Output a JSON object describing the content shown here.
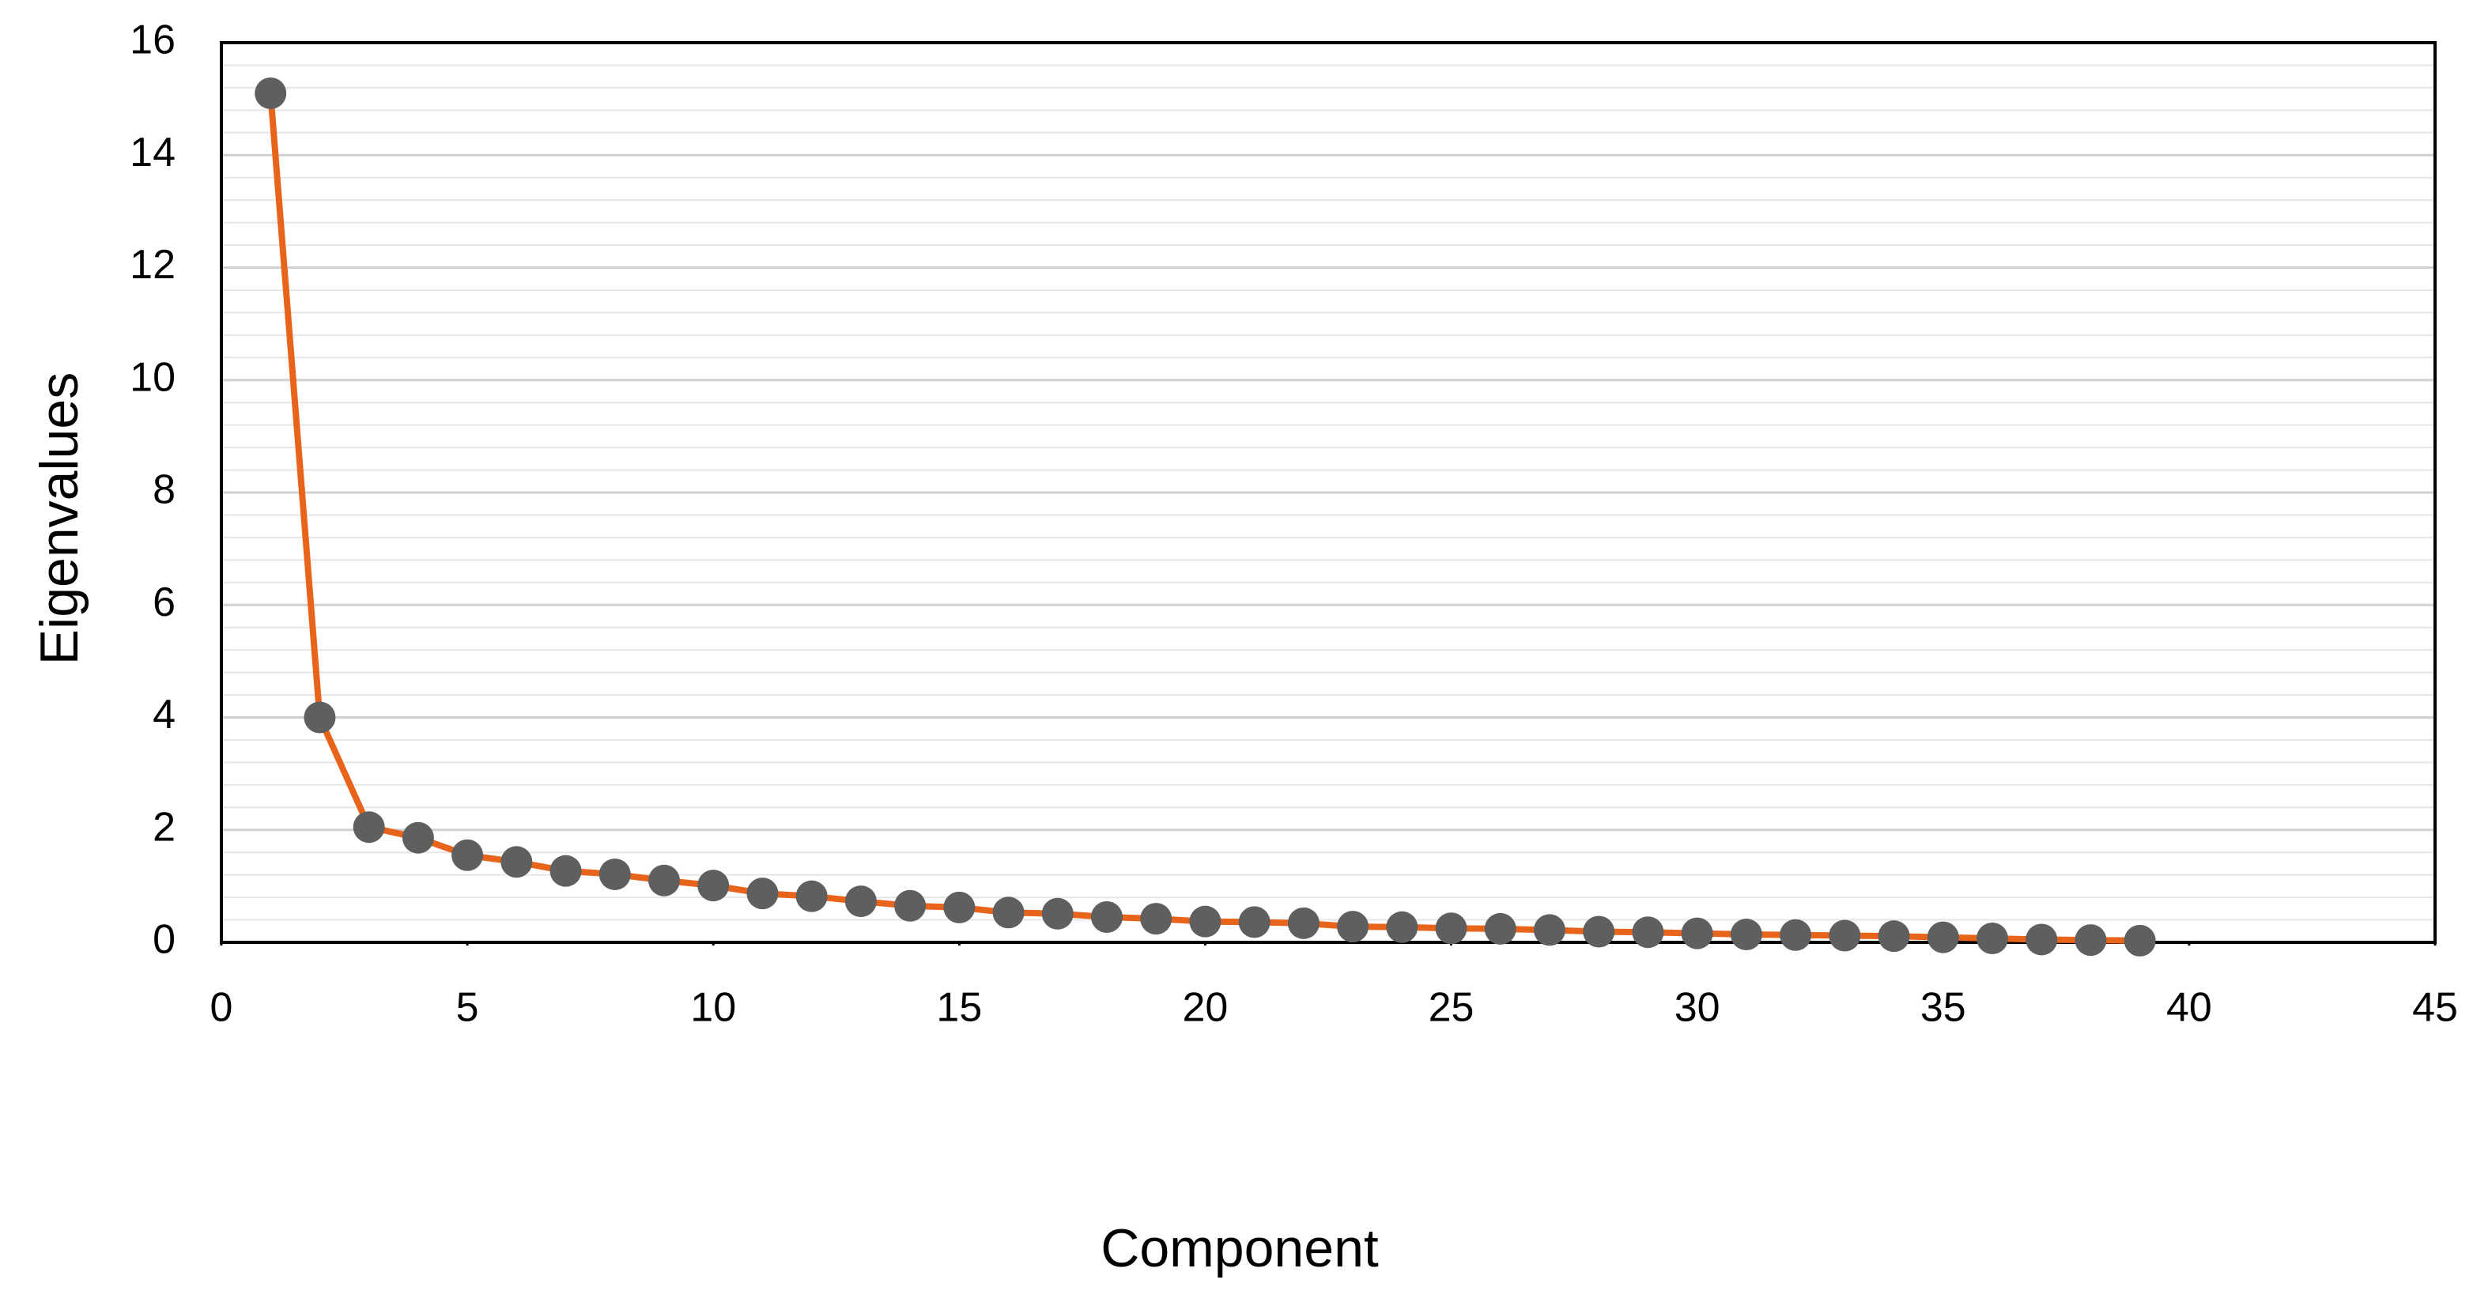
{
  "chart_data": {
    "type": "line",
    "x_label": "Component",
    "y_label": "Eigenvalues",
    "x": [
      1,
      2,
      3,
      4,
      5,
      6,
      7,
      8,
      9,
      10,
      11,
      12,
      13,
      14,
      15,
      16,
      17,
      18,
      19,
      20,
      21,
      22,
      23,
      24,
      25,
      26,
      27,
      28,
      29,
      30,
      31,
      32,
      33,
      34,
      35,
      36,
      37,
      38,
      39
    ],
    "values": [
      15.1,
      4.0,
      2.05,
      1.86,
      1.55,
      1.43,
      1.27,
      1.21,
      1.1,
      1.01,
      0.87,
      0.82,
      0.73,
      0.65,
      0.62,
      0.53,
      0.51,
      0.45,
      0.42,
      0.37,
      0.36,
      0.34,
      0.28,
      0.27,
      0.25,
      0.24,
      0.22,
      0.19,
      0.18,
      0.16,
      0.14,
      0.13,
      0.12,
      0.11,
      0.09,
      0.07,
      0.05,
      0.04,
      0.03
    ],
    "color": "#e8641b",
    "marker_color": "#5f5f5f",
    "xlim": [
      0,
      45
    ],
    "xticks": [
      0,
      5,
      10,
      15,
      20,
      25,
      30,
      35,
      40,
      45
    ],
    "ylim": [
      0,
      16
    ],
    "yticks": [
      0,
      2,
      4,
      6,
      8,
      10,
      12,
      14,
      16
    ],
    "grid": true
  }
}
